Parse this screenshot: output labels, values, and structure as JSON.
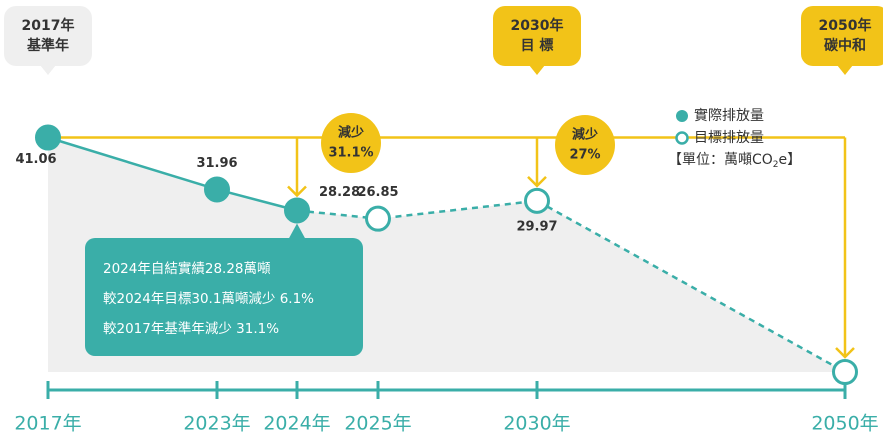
{
  "chart_data": {
    "type": "line",
    "categories": [
      "2017年",
      "2023年",
      "2024年",
      "2025年",
      "2030年",
      "2050年"
    ],
    "series": [
      {
        "name": "實際排放量",
        "color": "#3aaea8",
        "values": [
          41.06,
          31.96,
          28.28,
          null,
          null,
          null
        ]
      },
      {
        "name": "目標排放量",
        "color": "#3aaea8",
        "values": [
          null,
          null,
          28.28,
          26.85,
          29.97,
          0
        ]
      }
    ],
    "ylim": [
      0,
      45
    ],
    "milestones": [
      {
        "year": "2017年",
        "label": "基準年"
      },
      {
        "year": "2030年",
        "label": "目 標"
      },
      {
        "year": "2050年",
        "label": "碳中和"
      }
    ],
    "reductions": [
      {
        "label": "減少",
        "value": "31.1%"
      },
      {
        "label": "減少",
        "value": "27%"
      }
    ],
    "callout": [
      "2024年自結實績28.28萬噸",
      "較2024年目標30.1萬噸減少 6.1%",
      "較2017年基準年減少 31.1%"
    ],
    "unit": {
      "prefix": "【單位：萬噸CO",
      "sub": "2",
      "suffix": "e】"
    }
  }
}
